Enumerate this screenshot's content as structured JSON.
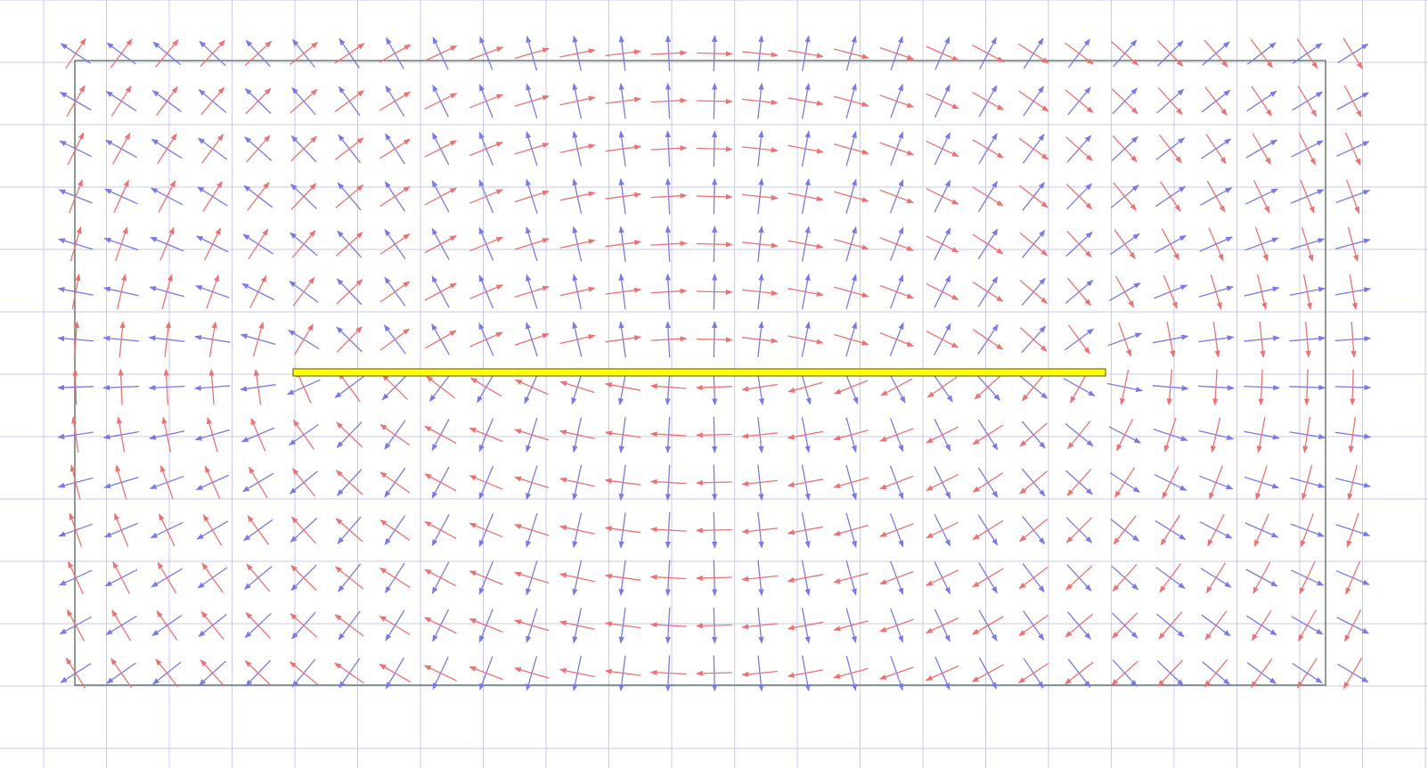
{
  "diagram": {
    "kind": "vector-field",
    "description_visible_text": "",
    "colors": {
      "background": "#ffffff",
      "grid": "#c8c8f0",
      "boundary": "#6a7a6a",
      "conductor_fill": "#ffff00",
      "conductor_stroke": "#555500",
      "field_a": "#f07070",
      "field_b": "#7878f0"
    },
    "field_a": {
      "name": "",
      "pattern": "circulation-around-conductor"
    },
    "field_b": {
      "name": "",
      "pattern": "perpendicular-to-field-a"
    },
    "has_boundary_box": true,
    "has_conductor_strip": true,
    "grid": "on"
  }
}
